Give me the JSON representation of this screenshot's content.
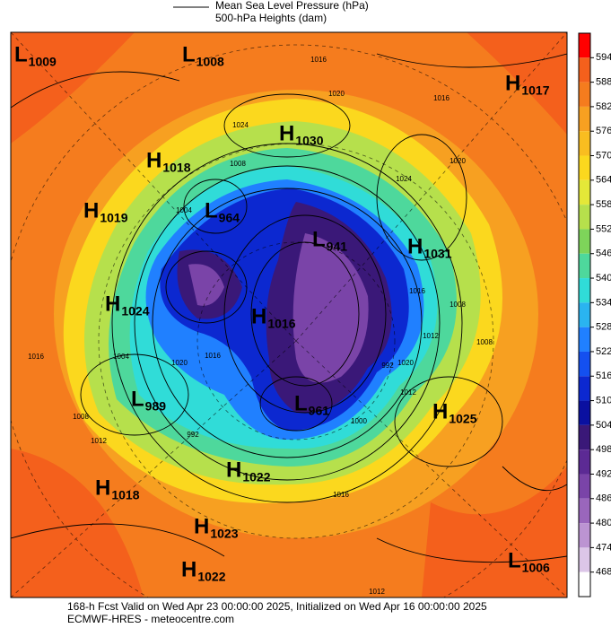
{
  "header": {
    "legend": [
      "Mean Sea Level Pressure (hPa)",
      "500-hPa Heights (dam)"
    ]
  },
  "map": {
    "centers": [
      {
        "letter": "L",
        "value": "1009"
      },
      {
        "letter": "L",
        "value": "1008"
      },
      {
        "letter": "H",
        "value": "1017"
      },
      {
        "letter": "H",
        "value": "1030"
      },
      {
        "letter": "H",
        "value": "1018"
      },
      {
        "letter": "H",
        "value": "1019"
      },
      {
        "letter": "L",
        "value": "964"
      },
      {
        "letter": "L",
        "value": "941"
      },
      {
        "letter": "H",
        "value": "1031"
      },
      {
        "letter": "H",
        "value": "1024"
      },
      {
        "letter": "H",
        "value": "1016"
      },
      {
        "letter": "L",
        "value": "989"
      },
      {
        "letter": "L",
        "value": "961"
      },
      {
        "letter": "H",
        "value": "1025"
      },
      {
        "letter": "H",
        "value": "1022"
      },
      {
        "letter": "H",
        "value": "1018"
      },
      {
        "letter": "H",
        "value": "1023"
      },
      {
        "letter": "H",
        "value": "1022"
      },
      {
        "letter": "L",
        "value": "1006"
      }
    ],
    "contour_labels": [
      "1016",
      "1020",
      "1024",
      "1016",
      "1020",
      "1024",
      "1008",
      "1004",
      "1016",
      "1020",
      "1016",
      "1008",
      "992",
      "1012",
      "1004",
      "1000",
      "992",
      "1008",
      "1012",
      "1016",
      "1008",
      "1012",
      "1020",
      "1012",
      "1016"
    ]
  },
  "colorbar": {
    "levels": [
      594,
      588,
      582,
      576,
      570,
      564,
      558,
      552,
      546,
      540,
      534,
      528,
      522,
      516,
      510,
      504,
      498,
      492,
      486,
      480,
      474,
      468
    ],
    "colors": [
      "#ff0000",
      "#f4601c",
      "#f57c1e",
      "#f7a021",
      "#f9bd20",
      "#fbd81e",
      "#e4e838",
      "#b6e04c",
      "#7ed45a",
      "#4ed89c",
      "#30dcd8",
      "#2ab4f0",
      "#2080ff",
      "#1450f0",
      "#0c28d0",
      "#0a10a0",
      "#3a1878",
      "#5c2a94",
      "#7a44a8",
      "#9a66bc",
      "#bc94d2",
      "#dcc6e8",
      "#ffffff"
    ]
  },
  "footer": {
    "lines": [
      "168-h Fcst Valid on Wed Apr 23 00:00:00 2025, Initialized on Wed Apr 16 00:00:00 2025",
      "ECMWF-HRES - meteocentre.com"
    ]
  }
}
